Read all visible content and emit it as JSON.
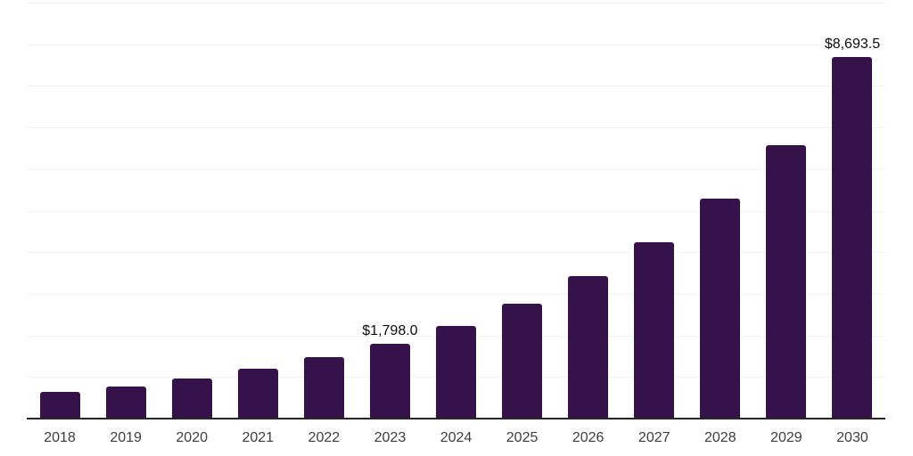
{
  "chart_data": {
    "type": "bar",
    "title": "",
    "xlabel": "",
    "ylabel": "",
    "categories": [
      "2018",
      "2019",
      "2020",
      "2021",
      "2022",
      "2023",
      "2024",
      "2025",
      "2026",
      "2027",
      "2028",
      "2029",
      "2030"
    ],
    "values": [
      650,
      780,
      960,
      1210,
      1470,
      1798.0,
      2230,
      2770,
      3420,
      4250,
      5280,
      6580,
      8693.5
    ],
    "point_labels": {
      "2023": "$1,798.0",
      "2030": "$8,693.5"
    },
    "ylim": [
      0,
      10000
    ],
    "gridline_step": 1000,
    "grid": true,
    "legend": false,
    "y_axis_tick_labels_visible": false
  },
  "style": {
    "bar_color": "#36124a",
    "grid_color": "#f2f2f2",
    "axis_color": "#262626",
    "x_label_color": "#3d3d3d",
    "point_label_color": "#0d0d0d",
    "background": "#ffffff"
  }
}
